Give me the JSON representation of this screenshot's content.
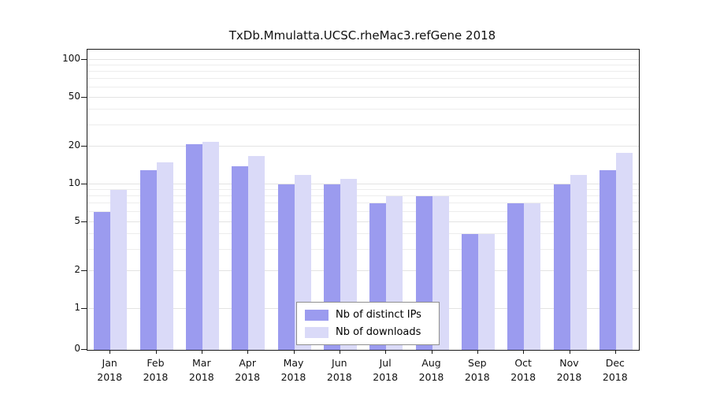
{
  "chart_data": {
    "type": "bar",
    "title": "TxDb.Mmulatta.UCSC.rheMac3.refGene 2018",
    "categories": [
      "Jan",
      "Feb",
      "Mar",
      "Apr",
      "May",
      "Jun",
      "Jul",
      "Aug",
      "Sep",
      "Oct",
      "Nov",
      "Dec"
    ],
    "category_year": "2018",
    "series": [
      {
        "name": "Nb of distinct IPs",
        "color": "#9b9bef",
        "values": [
          6,
          13,
          21,
          14,
          10,
          10,
          7,
          8,
          4,
          7,
          10,
          13
        ]
      },
      {
        "name": "Nb of downloads",
        "color": "#dadaf8",
        "values": [
          9,
          15,
          22,
          17,
          12,
          11,
          8,
          8,
          4,
          7,
          12,
          18
        ]
      }
    ],
    "yscale": "log",
    "ylim": [
      0,
      100
    ],
    "yticks": [
      0,
      1,
      2,
      5,
      10,
      20,
      50,
      100
    ],
    "minor_gridlines": [
      3,
      4,
      6,
      7,
      8,
      9,
      30,
      40,
      60,
      70,
      80,
      90
    ],
    "grid": "horizontal",
    "legend_position": "bottom-center"
  }
}
